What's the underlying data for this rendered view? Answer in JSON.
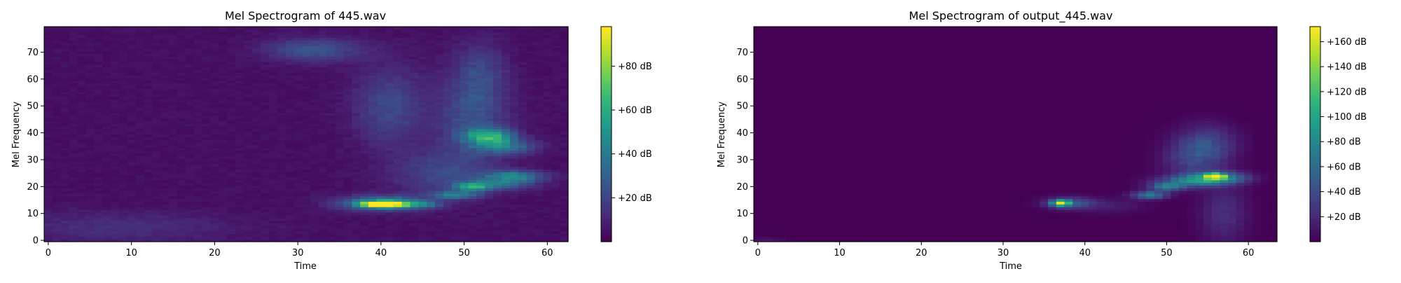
{
  "chart_data": [
    {
      "type": "heatmap",
      "title": "Mel Spectrogram of 445.wav",
      "xlabel": "Time",
      "ylabel": "Mel Frequency",
      "xlim": [
        -0.5,
        62.5
      ],
      "ylim": [
        -0.5,
        79.5
      ],
      "x_ticks": [
        "0",
        "10",
        "20",
        "30",
        "40",
        "50",
        "60"
      ],
      "x_tick_values": [
        0,
        10,
        20,
        30,
        40,
        50,
        60
      ],
      "y_ticks": [
        "0",
        "10",
        "20",
        "30",
        "40",
        "50",
        "60",
        "70"
      ],
      "y_tick_values": [
        0,
        10,
        20,
        30,
        40,
        50,
        60,
        70
      ],
      "colormap": "viridis",
      "colorbar": {
        "range": [
          0,
          98
        ],
        "ticks": [
          "+20 dB",
          "+40 dB",
          "+60 dB",
          "+80 dB"
        ],
        "tick_values": [
          20,
          40,
          60,
          80
        ]
      },
      "background_level": 4,
      "hotspots": [
        {
          "t": 40,
          "m": 13.5,
          "value": 98,
          "dt": 1.6,
          "dm": 0.8
        },
        {
          "t": 40,
          "m": 14,
          "value": 50,
          "dt": 3.5,
          "dm": 1.8
        },
        {
          "t": 44,
          "m": 13.5,
          "value": 35,
          "dt": 2,
          "dm": 1
        },
        {
          "t": 49,
          "m": 17,
          "value": 40,
          "dt": 2,
          "dm": 1
        },
        {
          "t": 51,
          "m": 20,
          "value": 45,
          "dt": 1.5,
          "dm": 1
        },
        {
          "t": 53,
          "m": 39,
          "value": 55,
          "dt": 2,
          "dm": 2
        },
        {
          "t": 55,
          "m": 35,
          "value": 35,
          "dt": 2.5,
          "dm": 2
        },
        {
          "t": 56,
          "m": 24,
          "value": 45,
          "dt": 2.5,
          "dm": 1.5
        },
        {
          "t": 54,
          "m": 21,
          "value": 30,
          "dt": 3,
          "dm": 1.5
        },
        {
          "t": 32,
          "m": 71,
          "value": 25,
          "dt": 4,
          "dm": 3
        },
        {
          "t": 41,
          "m": 50,
          "value": 20,
          "dt": 3,
          "dm": 10
        },
        {
          "t": 51,
          "m": 46,
          "value": 22,
          "dt": 3,
          "dm": 12
        },
        {
          "t": 52,
          "m": 63,
          "value": 14,
          "dt": 2,
          "dm": 8
        },
        {
          "t": 47,
          "m": 25,
          "value": 18,
          "dt": 4,
          "dm": 6
        },
        {
          "t": 8,
          "m": 5,
          "value": 10,
          "dt": 10,
          "dm": 4
        }
      ]
    },
    {
      "type": "heatmap",
      "title": "Mel Spectrogram of output_445.wav",
      "xlabel": "Time",
      "ylabel": "Mel Frequency",
      "xlim": [
        -0.5,
        63.5
      ],
      "ylim": [
        -0.5,
        79.5
      ],
      "x_ticks": [
        "0",
        "10",
        "20",
        "30",
        "40",
        "50",
        "60"
      ],
      "x_tick_values": [
        0,
        10,
        20,
        30,
        40,
        50,
        60
      ],
      "y_ticks": [
        "0",
        "10",
        "20",
        "30",
        "40",
        "50",
        "60",
        "70"
      ],
      "y_tick_values": [
        0,
        10,
        20,
        30,
        40,
        50,
        60,
        70
      ],
      "colormap": "viridis",
      "colorbar": {
        "range": [
          0,
          172
        ],
        "ticks": [
          "+20 dB",
          "+40 dB",
          "+60 dB",
          "+80 dB",
          "+100 dB",
          "+120 dB",
          "+140 dB",
          "+160 dB"
        ],
        "tick_values": [
          20,
          40,
          60,
          80,
          100,
          120,
          140,
          160
        ]
      },
      "background_level": 0,
      "hotspots": [
        {
          "t": 56,
          "m": 24,
          "value": 172,
          "dt": 0.7,
          "dm": 0.6
        },
        {
          "t": 56,
          "m": 23.5,
          "value": 95,
          "dt": 2.5,
          "dm": 1.5
        },
        {
          "t": 53,
          "m": 22,
          "value": 60,
          "dt": 3,
          "dm": 1.5
        },
        {
          "t": 50,
          "m": 20,
          "value": 70,
          "dt": 1.5,
          "dm": 1
        },
        {
          "t": 48,
          "m": 17,
          "value": 80,
          "dt": 1.5,
          "dm": 1
        },
        {
          "t": 37,
          "m": 14,
          "value": 130,
          "dt": 0.8,
          "dm": 0.8
        },
        {
          "t": 38,
          "m": 14,
          "value": 55,
          "dt": 2,
          "dm": 1.5
        },
        {
          "t": 55,
          "m": 36,
          "value": 40,
          "dt": 2.5,
          "dm": 5
        },
        {
          "t": 53,
          "m": 30,
          "value": 30,
          "dt": 2.5,
          "dm": 5
        },
        {
          "t": 57,
          "m": 10,
          "value": 25,
          "dt": 2,
          "dm": 8
        },
        {
          "t": 43,
          "m": 13,
          "value": 15,
          "dt": 3,
          "dm": 2
        },
        {
          "t": 1,
          "m": 0,
          "value": 12,
          "dt": 1.5,
          "dm": 0.8
        }
      ]
    }
  ]
}
